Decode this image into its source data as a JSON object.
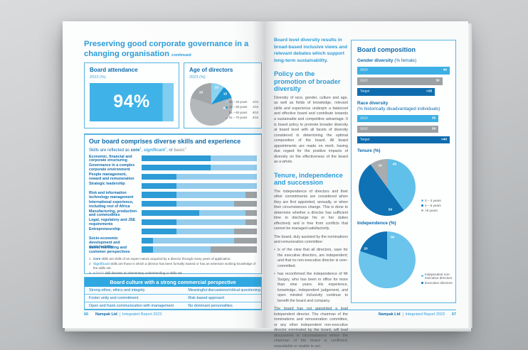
{
  "palette": {
    "accent": "#2b9cd8",
    "dark_blue": "#0f6cad",
    "bright_blue": "#3fb3e7",
    "light_blue": "#93ccec",
    "gray_bar": "#9ca1a4",
    "border_blue": "#55b5e2"
  },
  "left_page": {
    "title": "Preserving good corporate governance in a changing organisation",
    "title_suffix": "continued",
    "attendance": {
      "title": "Board attendance",
      "period": "2023 (%)",
      "value": "94%"
    },
    "age": {
      "title": "Age of directors",
      "period": "2023 (%)",
      "pie": {
        "slices": [
          {
            "label": "30 – 40 years",
            "value": 10,
            "fraction": "1/10",
            "color": "#8dd2f0"
          },
          {
            "label": "41 – 50 years",
            "value": 10,
            "fraction": "1/10",
            "color": "#1e96d2"
          },
          {
            "label": "51 – 60 years",
            "value": 60,
            "fraction": "6/10",
            "color": "#b5b8ba",
            "label_at": 108,
            "label_r": 34
          },
          {
            "label": "61 – 70 years",
            "value": 20,
            "fraction": "2/10",
            "color": "#a2a6a9",
            "label_at": 318,
            "label_r": 36
          }
        ]
      }
    },
    "skills": {
      "heading": "Our board comprises diverse skills and experience",
      "subtitle_parts": [
        {
          "text": "Skills are reflected as "
        },
        {
          "text": "core",
          "color": "#0f6cad",
          "bold": true,
          "sup": "1"
        },
        {
          "text": ", "
        },
        {
          "text": "significant",
          "color": "#3fa9de",
          "bold": true,
          "sup": "2"
        },
        {
          "text": ", or "
        },
        {
          "text": "basic",
          "color": "#9ca1a4",
          "bold": true,
          "sup": "3"
        }
      ],
      "colors": {
        "core": "#2d9bd5",
        "significant": "#93ccec",
        "basic": "#9ca1a4"
      },
      "rows": [
        {
          "label": "Economic, financial and corporate structuring",
          "core": 60,
          "significant": 40,
          "basic": 0
        },
        {
          "label": "Governance in a complex corporate environment",
          "core": 60,
          "significant": 40,
          "basic": 0
        },
        {
          "label": "People management, reward and remuneration",
          "core": 30,
          "significant": 70,
          "basic": 0
        },
        {
          "label": "Strategic leadership",
          "core": 30,
          "significant": 70,
          "basic": 0
        },
        {
          "label": "Risk and information technology management",
          "core": 30,
          "significant": 60,
          "basic": 10
        },
        {
          "label": "International experience, including rest of Africa",
          "core": 30,
          "significant": 50,
          "basic": 20
        },
        {
          "label": "Manufacturing, production and commodities",
          "core": 50,
          "significant": 40,
          "basic": 10
        },
        {
          "label": "Legal, regulatory and JSE requirements",
          "core": 30,
          "significant": 60,
          "basic": 10
        },
        {
          "label": "Entrepreneurship",
          "core": 30,
          "significant": 50,
          "basic": 20
        },
        {
          "label": "Socio-economic development and sustainability",
          "core": 10,
          "significant": 70,
          "basic": 20
        },
        {
          "label": "Sales, marketing and customer perspectives",
          "core": 10,
          "significant": 50,
          "basic": 40
        }
      ],
      "footnotes": [
        {
          "num": "1",
          "parts": [
            {
              "text": "Core",
              "color": "#0f6cad",
              "bold": true
            },
            {
              "text": " skills are skills of an expert nature acquired by a director through many years of application."
            }
          ]
        },
        {
          "num": "2",
          "parts": [
            {
              "text": "Significant",
              "color": "#3fa9de",
              "bold": true
            },
            {
              "text": " skills are those in which a director has been formally trained or has an extensive working knowledge of the skills set."
            }
          ]
        },
        {
          "num": "3",
          "parts": [
            {
              "text": "A "
            },
            {
              "text": "basic",
              "color": "#9ca1a4",
              "bold": true
            },
            {
              "text": " skill denotes an elementary understanding or skills set."
            }
          ]
        }
      ]
    },
    "culture": {
      "heading": "Board culture with a strong commercial perspective",
      "rows": [
        [
          "Strong ethos, ethics and integrity",
          "Meaningful discussions/critical questioning"
        ],
        [
          "Foster unity and commitment",
          "Risk-based approach"
        ],
        [
          "Open and frank communication with management",
          "No dominant personalities"
        ]
      ]
    },
    "footer": {
      "page": "66",
      "brand": "Nampak Ltd",
      "report": "Integrated Report 2023"
    }
  },
  "right_page": {
    "article": {
      "quote": "Board level diversity results in broad-based inclusive views and relevant debates which support long-term sustainability.",
      "heading1": "Policy on the promotion of broader diversity",
      "p1": "Diversity of race, gender, culture and age, as well as fields of knowledge, relevant skills and experience underpin a balanced and effective board and contribute towards a sustainable and competitive advantage. It is board policy to promote broader diversity at board level with all facets of diversity considered in determining the optimal composition of the board. All board appointments are made on merit, having due regard for the positive impacts of diversity on the effectiveness of the board as a whole.",
      "heading2": "Tenure, independence and succession",
      "p2": "The independence of directors and their other commitments are considered when they are first appointed, annually, or when their circumstances change. This is done to determine whether a director has sufficient time to discharge his or her duties effectively and is free from conflicts that cannot be managed satisfactorily.",
      "p3": "The board, duly assisted by the nominations and remuneration committee:",
      "bullet1": "is of the view that all directors, save for the executive directors, are independent; and that no non-executive director is over-committed.",
      "bullet2": "has reconfirmed the independence of Mr Surgey, who has been in office for more than nine years. His experience, knowledge, independent judgement, and open minded inclusivity continue to benefit the board and company.",
      "p4": "The board has not appointed a lead independent director. The chairman of the nominations and remuneration committee, or any other independent non-executive director nominated by the board, will lead discussions in circumstances where the chairman of the board is conflicted, unavailable or unable to act."
    },
    "sidebar": {
      "title": "Board composition",
      "gender": {
        "label_bold": "Gender diversity",
        "label_rest": " (% female)",
        "bars": [
          {
            "name": "2023",
            "value": "40",
            "width": 100,
            "color": "#3cb0e4"
          },
          {
            "name": "2022",
            "value": "30",
            "width": 92,
            "color": "#9ca1a4"
          },
          {
            "name": "Target",
            "value": ">25",
            "width": 84,
            "color": "#0e6cae"
          }
        ]
      },
      "race": {
        "label_bold": "Race diversity",
        "label_rest": "(% historically disadvantaged individuals)",
        "bars": [
          {
            "name": "2023",
            "value": "50",
            "width": 88,
            "color": "#3cb0e4"
          },
          {
            "name": "2022",
            "value": "50",
            "width": 88,
            "color": "#9ca1a4"
          },
          {
            "name": "Target",
            "value": ">40",
            "width": 100,
            "color": "#0e6cae"
          }
        ]
      },
      "tenure": {
        "heading": "Tenure (%)",
        "pie": {
          "slices": [
            {
              "label": "0 – 3 years",
              "value": 40,
              "color": "#61c0ea",
              "label_at": 18,
              "label_r": 42
            },
            {
              "label": "4 – 8 years",
              "value": 50,
              "color": "#0e72b4",
              "label_at": 172,
              "label_r": 40
            },
            {
              "label": ">8 years",
              "value": 10,
              "color": "#a8acaf"
            }
          ]
        }
      },
      "independence": {
        "heading": "Independence (%)",
        "pie": {
          "slices": [
            {
              "label": "Independent non-executive directors",
              "value": 80,
              "color": "#6ac4ec",
              "label_at": 14,
              "label_r": 40
            },
            {
              "label": "Executive directors",
              "value": 20,
              "color": "#0e72b4",
              "label_at": 297,
              "label_r": 42
            }
          ]
        }
      }
    },
    "footer": {
      "brand": "Nampak Ltd",
      "report": "Integrated Report 2023",
      "page": "67"
    }
  },
  "chart_data": [
    {
      "type": "bar",
      "title": "Board attendance 2023 (%)",
      "categories": [
        "2023"
      ],
      "values": [
        94
      ],
      "ylim": [
        0,
        100
      ]
    },
    {
      "type": "pie",
      "title": "Age of directors 2023 (%)",
      "categories": [
        "30 – 40 years",
        "41 – 50 years",
        "51 – 60 years",
        "61 – 70 years"
      ],
      "values": [
        10,
        10,
        60,
        20
      ],
      "annotations": [
        "1/10",
        "1/10",
        "6/10",
        "2/10"
      ],
      "legend_position": "right"
    },
    {
      "type": "bar",
      "title": "Our board comprises diverse skills and experience",
      "stacked": true,
      "categories": [
        "Economic, financial and corporate structuring",
        "Governance in a complex corporate environment",
        "People management, reward and remuneration",
        "Strategic leadership",
        "Risk and information technology management",
        "International experience, including rest of Africa",
        "Manufacturing, production and commodities",
        "Legal, regulatory and JSE requirements",
        "Entrepreneurship",
        "Socio-economic development and sustainability",
        "Sales, marketing and customer perspectives"
      ],
      "series": [
        {
          "name": "core",
          "values": [
            60,
            60,
            30,
            30,
            30,
            30,
            50,
            30,
            30,
            10,
            10
          ]
        },
        {
          "name": "significant",
          "values": [
            40,
            40,
            70,
            70,
            60,
            50,
            40,
            60,
            50,
            70,
            50
          ]
        },
        {
          "name": "basic",
          "values": [
            0,
            0,
            0,
            0,
            10,
            20,
            10,
            10,
            20,
            20,
            40
          ]
        }
      ],
      "xlim": [
        0,
        100
      ]
    },
    {
      "type": "bar",
      "title": "Gender diversity (% female)",
      "categories": [
        "2023",
        "2022",
        "Target"
      ],
      "values": [
        40,
        30,
        ">25"
      ]
    },
    {
      "type": "bar",
      "title": "Race diversity (% historically disadvantaged individuals)",
      "categories": [
        "2023",
        "2022",
        "Target"
      ],
      "values": [
        50,
        50,
        ">40"
      ]
    },
    {
      "type": "pie",
      "title": "Tenure (%)",
      "categories": [
        "0 – 3 years",
        "4 – 8 years",
        ">8 years"
      ],
      "values": [
        40,
        50,
        10
      ],
      "legend_position": "bottom-right"
    },
    {
      "type": "pie",
      "title": "Independence (%)",
      "categories": [
        "Independent non-executive directors",
        "Executive directors"
      ],
      "values": [
        80,
        20
      ],
      "legend_position": "bottom-right"
    }
  ]
}
